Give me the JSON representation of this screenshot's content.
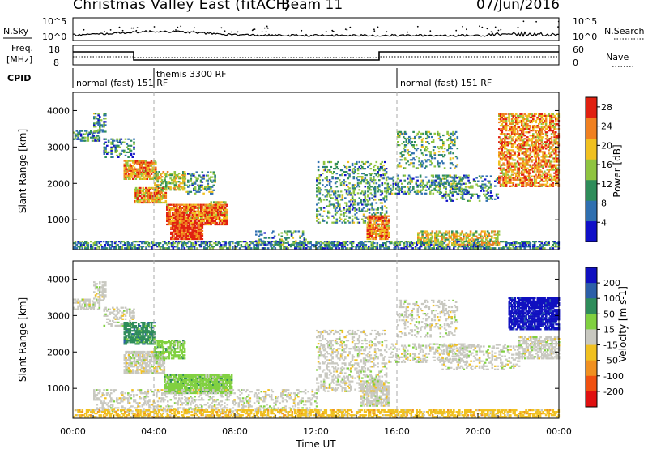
{
  "header": {
    "title": "Christmas Valley East (fitACF)",
    "beam": "Beam 11",
    "date": "07/Jun/2016"
  },
  "top_panels": {
    "nsky_label": "N.Sky",
    "nsky_ticks": [
      "10^5",
      "10^0"
    ],
    "nsearch_ticks": [
      "10^5",
      "10^0"
    ],
    "nsearch_label": "N.Search",
    "freq_label_1": "Freq.",
    "freq_label_2": "[MHz]",
    "freq_ticks": [
      "18",
      "8"
    ],
    "nave_ticks": [
      "60",
      "0"
    ],
    "nave_label": "Nave",
    "cpid_label": "CPID",
    "cpid_segments": [
      "normal (fast) 151 RF",
      "themis 3300 RF",
      "normal (fast) 151 RF"
    ]
  },
  "chart_data": [
    {
      "type": "heatmap",
      "name": "power",
      "ylabel": "Slant Range [km]",
      "xlabel": "",
      "x_range_hours": [
        0,
        24
      ],
      "ylim": [
        180,
        4500
      ],
      "yticks": [
        "1000",
        "2000",
        "3000",
        "4000"
      ],
      "colorbar_label": "Power [dB]",
      "colorbar_ticks": [
        "4",
        "8",
        "12",
        "16",
        "20",
        "24",
        "28"
      ],
      "colorbar_colors": [
        "#1010c8",
        "#2f6fb0",
        "#2e8c5a",
        "#8fc440",
        "#f0c020",
        "#f08020",
        "#e02010"
      ],
      "colorbar_range": [
        0,
        30
      ],
      "regions": [
        {
          "t": [
            0.0,
            1.3
          ],
          "r": [
            3150,
            3450
          ],
          "dens": 0.55,
          "lvl": 0.3
        },
        {
          "t": [
            1.0,
            1.6
          ],
          "r": [
            3400,
            3900
          ],
          "dens": 0.5,
          "lvl": 0.35
        },
        {
          "t": [
            1.5,
            3.0
          ],
          "r": [
            2700,
            3200
          ],
          "dens": 0.35,
          "lvl": 0.3
        },
        {
          "t": [
            2.5,
            4.1
          ],
          "r": [
            2100,
            2600
          ],
          "dens": 0.75,
          "lvl": 0.75
        },
        {
          "t": [
            3.0,
            4.6
          ],
          "r": [
            1450,
            1900
          ],
          "dens": 0.8,
          "lvl": 0.72
        },
        {
          "t": [
            4.0,
            5.5
          ],
          "r": [
            1800,
            2300
          ],
          "dens": 0.55,
          "lvl": 0.55
        },
        {
          "t": [
            5.5,
            7.0
          ],
          "r": [
            1700,
            2300
          ],
          "dens": 0.35,
          "lvl": 0.35
        },
        {
          "t": [
            6.5,
            7.5
          ],
          "r": [
            1150,
            1500
          ],
          "dens": 0.5,
          "lvl": 0.5
        },
        {
          "t": [
            4.6,
            7.6
          ],
          "r": [
            850,
            1400
          ],
          "dens": 0.85,
          "lvl": 0.8
        },
        {
          "t": [
            4.8,
            6.4
          ],
          "r": [
            450,
            900
          ],
          "dens": 0.9,
          "lvl": 0.95
        },
        {
          "t": [
            0.0,
            24.0
          ],
          "r": [
            200,
            420
          ],
          "dens": 0.55,
          "lvl": 0.3
        },
        {
          "t": [
            9.0,
            11.5
          ],
          "r": [
            300,
            700
          ],
          "dens": 0.25,
          "lvl": 0.35
        },
        {
          "t": [
            12.0,
            15.5
          ],
          "r": [
            900,
            2600
          ],
          "dens": 0.3,
          "lvl": 0.35
        },
        {
          "t": [
            14.5,
            15.6
          ],
          "r": [
            450,
            1100
          ],
          "dens": 0.75,
          "lvl": 0.8
        },
        {
          "t": [
            15.5,
            19.5
          ],
          "r": [
            1700,
            2200
          ],
          "dens": 0.35,
          "lvl": 0.35
        },
        {
          "t": [
            16.0,
            19.0
          ],
          "r": [
            2400,
            3400
          ],
          "dens": 0.25,
          "lvl": 0.4
        },
        {
          "t": [
            17.0,
            21.0
          ],
          "r": [
            300,
            700
          ],
          "dens": 0.55,
          "lvl": 0.6
        },
        {
          "t": [
            18.0,
            21.0
          ],
          "r": [
            1500,
            2200
          ],
          "dens": 0.2,
          "lvl": 0.3
        },
        {
          "t": [
            21.0,
            24.0
          ],
          "r": [
            1900,
            3900
          ],
          "dens": 0.55,
          "lvl": 0.75
        }
      ]
    },
    {
      "type": "heatmap",
      "name": "velocity",
      "ylabel": "Slant Range [km]",
      "xlabel": "Time UT",
      "x_range_hours": [
        0,
        24
      ],
      "xticks": [
        "00:00",
        "04:00",
        "08:00",
        "12:00",
        "16:00",
        "20:00",
        "00:00"
      ],
      "ylim": [
        180,
        4500
      ],
      "yticks": [
        "1000",
        "2000",
        "3000",
        "4000"
      ],
      "colorbar_label": "Velocity [m s-1]",
      "colorbar_ticks": [
        "200",
        "100",
        "50",
        "15",
        "-15",
        "-50",
        "-100",
        "-200"
      ],
      "colorbar_colors": [
        "#1010c0",
        "#2c5fa8",
        "#2e8c5a",
        "#80d040",
        "#c8c8c0",
        "#f0c020",
        "#f09020",
        "#f05010",
        "#e01010"
      ],
      "regions": [
        {
          "t": [
            0.0,
            1.3
          ],
          "r": [
            3150,
            3450
          ],
          "dens": 0.5,
          "cls": 4
        },
        {
          "t": [
            1.0,
            1.6
          ],
          "r": [
            3400,
            3900
          ],
          "dens": 0.5,
          "cls": 4
        },
        {
          "t": [
            1.5,
            3.0
          ],
          "r": [
            2700,
            3200
          ],
          "dens": 0.35,
          "cls": 4
        },
        {
          "t": [
            2.5,
            4.0
          ],
          "r": [
            2200,
            2800
          ],
          "dens": 0.75,
          "cls": 2
        },
        {
          "t": [
            2.5,
            4.5
          ],
          "r": [
            1400,
            2000
          ],
          "dens": 0.7,
          "cls": 4
        },
        {
          "t": [
            4.0,
            5.5
          ],
          "r": [
            1800,
            2300
          ],
          "dens": 0.6,
          "cls": 3
        },
        {
          "t": [
            4.5,
            7.8
          ],
          "r": [
            850,
            1350
          ],
          "dens": 0.9,
          "cls": 3
        },
        {
          "t": [
            1.0,
            12.0
          ],
          "r": [
            350,
            950
          ],
          "dens": 0.3,
          "cls": 4
        },
        {
          "t": [
            0.0,
            24.0
          ],
          "r": [
            200,
            400
          ],
          "dens": 0.55,
          "cls": 5
        },
        {
          "t": [
            12.0,
            15.5
          ],
          "r": [
            900,
            2600
          ],
          "dens": 0.3,
          "cls": 4
        },
        {
          "t": [
            14.2,
            15.6
          ],
          "r": [
            500,
            1200
          ],
          "dens": 0.65,
          "cls": 4
        },
        {
          "t": [
            15.5,
            19.5
          ],
          "r": [
            1700,
            2200
          ],
          "dens": 0.3,
          "cls": 4
        },
        {
          "t": [
            16.0,
            19.0
          ],
          "r": [
            2400,
            3400
          ],
          "dens": 0.25,
          "cls": 4
        },
        {
          "t": [
            18.0,
            22.0
          ],
          "r": [
            1500,
            2200
          ],
          "dens": 0.25,
          "cls": 4
        },
        {
          "t": [
            22.0,
            24.0
          ],
          "r": [
            1800,
            2400
          ],
          "dens": 0.6,
          "cls": 4
        },
        {
          "t": [
            21.5,
            24.0
          ],
          "r": [
            2600,
            3500
          ],
          "dens": 0.85,
          "cls": 0
        }
      ]
    }
  ]
}
